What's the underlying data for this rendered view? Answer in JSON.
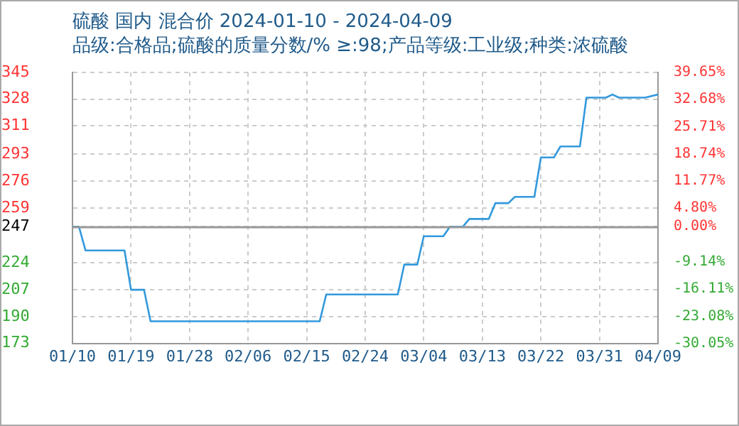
{
  "chart_data": {
    "type": "line",
    "title": "硫酸 国内 混合价 2024-01-10 - 2024-04-09",
    "subtitle": "品级:合格品;硫酸的质量分数/% ≥:98;产品等级:工业级;种类:浓硫酸",
    "x": [
      "2024-01-10",
      "2024-01-11",
      "2024-01-12",
      "2024-01-18",
      "2024-01-19",
      "2024-01-21",
      "2024-01-22",
      "2024-02-17",
      "2024-02-18",
      "2024-02-29",
      "2024-03-01",
      "2024-03-03",
      "2024-03-04",
      "2024-03-07",
      "2024-03-08",
      "2024-03-10",
      "2024-03-11",
      "2024-03-14",
      "2024-03-15",
      "2024-03-17",
      "2024-03-18",
      "2024-03-21",
      "2024-03-22",
      "2024-03-24",
      "2024-03-25",
      "2024-03-28",
      "2024-03-29",
      "2024-04-01",
      "2024-04-02",
      "2024-04-03",
      "2024-04-07",
      "2024-04-09"
    ],
    "series": [
      {
        "color": "#3399dd",
        "values": [
          247,
          247,
          232,
          232,
          207,
          207,
          187,
          187,
          204,
          204,
          223,
          223,
          241,
          241,
          247,
          247,
          252,
          252,
          262,
          262,
          266,
          266,
          291,
          291,
          298,
          298,
          329,
          329,
          331,
          329,
          329,
          331
        ]
      }
    ],
    "xlim": [
      "2024-01-10",
      "2024-04-09"
    ],
    "xticks": [
      {
        "value": "2024-01-10",
        "label": "01/10"
      },
      {
        "value": "2024-01-19",
        "label": "01/19"
      },
      {
        "value": "2024-01-28",
        "label": "01/28"
      },
      {
        "value": "2024-02-06",
        "label": "02/06"
      },
      {
        "value": "2024-02-15",
        "label": "02/15"
      },
      {
        "value": "2024-02-24",
        "label": "02/24"
      },
      {
        "value": "2024-03-04",
        "label": "03/04"
      },
      {
        "value": "2024-03-13",
        "label": "03/13"
      },
      {
        "value": "2024-03-22",
        "label": "03/22"
      },
      {
        "value": "2024-03-31",
        "label": "03/31"
      },
      {
        "value": "2024-04-09",
        "label": "04/09"
      }
    ],
    "ylim": [
      173,
      345
    ],
    "yticks": [
      173,
      190,
      207,
      224,
      247,
      259,
      276,
      293,
      311,
      328,
      345
    ],
    "y2lim": [
      -30.05,
      39.65
    ],
    "y2ticks": [
      {
        "value": -30.05,
        "label": "-30.05%"
      },
      {
        "value": -23.08,
        "label": "-23.08%"
      },
      {
        "value": -16.11,
        "label": "-16.11%"
      },
      {
        "value": -9.14,
        "label": "-9.14%"
      },
      {
        "value": 0,
        "label": "0.00%"
      },
      {
        "value": 4.8,
        "label": "4.80%"
      },
      {
        "value": 11.77,
        "label": "11.77%"
      },
      {
        "value": 18.74,
        "label": "18.74%"
      },
      {
        "value": 25.71,
        "label": "25.71%"
      },
      {
        "value": 32.68,
        "label": "32.68%"
      },
      {
        "value": 39.65,
        "label": "39.65%"
      }
    ],
    "ref_lines": [
      {
        "axis": "y",
        "value": 247,
        "color": "#999999"
      }
    ],
    "grid": true,
    "legend": false,
    "marker": "none"
  }
}
